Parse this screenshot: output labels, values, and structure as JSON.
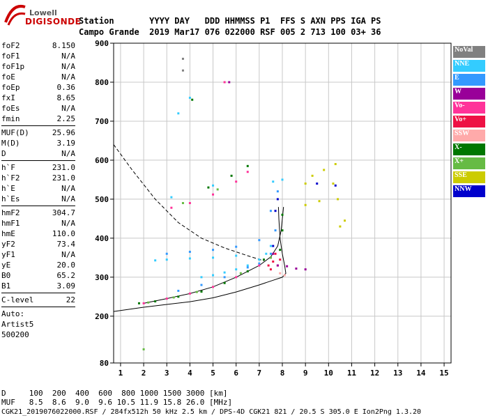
{
  "logo": {
    "line1": "Lowell",
    "line2": "DIGISONDE"
  },
  "header": {
    "row1": "Station       YYYY DAY   DDD HHMMSS P1  FFS S AXN PPS IGA PS",
    "row2": "Campo Grande  2019 Mar17 076 022000 RSF 005 2 713 100 03+ 36"
  },
  "params": [
    {
      "k": "foF2",
      "v": "8.150"
    },
    {
      "k": "foF1",
      "v": "N/A"
    },
    {
      "k": "foF1p",
      "v": "N/A"
    },
    {
      "k": "foE",
      "v": "N/A"
    },
    {
      "k": "foEp",
      "v": "0.36"
    },
    {
      "k": "fxI",
      "v": "8.65"
    },
    {
      "k": "foEs",
      "v": "N/A"
    },
    {
      "k": "fmin",
      "v": "2.25"
    },
    {
      "sep": true
    },
    {
      "k": "MUF(D)",
      "v": "25.96"
    },
    {
      "k": "M(D)",
      "v": "3.19"
    },
    {
      "k": "D",
      "v": "N/A"
    },
    {
      "sep": true
    },
    {
      "k": "h`F",
      "v": "231.0"
    },
    {
      "k": "h`F2",
      "v": "231.0"
    },
    {
      "k": "h`E",
      "v": "N/A"
    },
    {
      "k": "h`Es",
      "v": "N/A"
    },
    {
      "sep": true
    },
    {
      "k": "hmF2",
      "v": "304.7"
    },
    {
      "k": "hmF1",
      "v": "N/A"
    },
    {
      "k": "hmE",
      "v": "110.0"
    },
    {
      "k": "yF2",
      "v": "73.4"
    },
    {
      "k": "yF1",
      "v": "N/A"
    },
    {
      "k": "yE",
      "v": "20.0"
    },
    {
      "k": "B0",
      "v": "65.2"
    },
    {
      "k": "B1",
      "v": "3.09"
    },
    {
      "sep": true
    },
    {
      "k": "C-level",
      "v": "22"
    },
    {
      "sep": true
    },
    {
      "k": "Auto:",
      "v": ""
    },
    {
      "k": "Artist5",
      "v": ""
    },
    {
      "k": "500200",
      "v": ""
    }
  ],
  "legend": [
    {
      "label": "NoVal",
      "color": "#808080"
    },
    {
      "label": "NNE",
      "color": "#33ccff"
    },
    {
      "label": "E",
      "color": "#3399ff"
    },
    {
      "label": "W",
      "color": "#990099"
    },
    {
      "label": "Vo-",
      "color": "#ff3399"
    },
    {
      "label": "Vo+",
      "color": "#ee1144"
    },
    {
      "label": "SSW",
      "color": "#ffaaaa"
    },
    {
      "label": "X-",
      "color": "#007700"
    },
    {
      "label": "X+",
      "color": "#66bb44"
    },
    {
      "label": "SSE",
      "color": "#cccc00"
    },
    {
      "label": "NNW",
      "color": "#0000cc"
    }
  ],
  "bottom": {
    "row1": "D     100  200  400  600  800 1000 1500 3000 [km]",
    "row2": "MUF   8.5  8.6  9.0  9.6 10.5 11.9 15.8 26.0 [MHz]"
  },
  "footer": "CGK21_2019076022000.RSF / 284fx512h 50 kHz 2.5 km / DPS-4D CGK21 821 / 20.5 S 305.0 E Ion2Png 1.3.20",
  "chart_data": {
    "type": "scatter",
    "xlim": [
      0.7,
      15.3
    ],
    "ylim": [
      80,
      900
    ],
    "xticks": [
      1,
      2,
      3,
      4,
      5,
      6,
      7,
      8,
      9,
      10,
      11,
      12,
      13,
      14,
      15
    ],
    "yticks": [
      80,
      200,
      300,
      400,
      500,
      600,
      700,
      800,
      900
    ],
    "grid": true,
    "series": [
      {
        "color": "#33ccff",
        "points": [
          [
            4.5,
            300
          ],
          [
            5,
            305
          ],
          [
            5.5,
            312
          ],
          [
            6,
            320
          ],
          [
            6.5,
            330
          ],
          [
            7,
            345
          ],
          [
            7.3,
            360
          ],
          [
            7.5,
            380
          ],
          [
            6,
            355
          ],
          [
            5,
            350
          ],
          [
            4,
            348
          ],
          [
            3,
            345
          ],
          [
            2.5,
            343
          ],
          [
            7.6,
            545
          ],
          [
            8,
            550
          ],
          [
            3.2,
            505
          ],
          [
            5,
            535
          ],
          [
            3.5,
            720
          ],
          [
            4,
            760
          ]
        ]
      },
      {
        "color": "#3399ff",
        "points": [
          [
            3.5,
            265
          ],
          [
            4.5,
            280
          ],
          [
            5.5,
            300
          ],
          [
            6.5,
            325
          ],
          [
            7,
            335
          ],
          [
            7.5,
            360
          ],
          [
            7.7,
            420
          ],
          [
            3,
            360
          ],
          [
            4,
            365
          ],
          [
            5,
            370
          ],
          [
            6,
            378
          ],
          [
            7,
            395
          ],
          [
            7.5,
            470
          ],
          [
            7.8,
            520
          ]
        ]
      },
      {
        "color": "#ff3399",
        "points": [
          [
            2,
            233
          ],
          [
            3,
            245
          ],
          [
            4,
            258
          ],
          [
            5,
            275
          ],
          [
            6,
            300
          ],
          [
            7,
            330
          ],
          [
            7.5,
            350
          ],
          [
            3.2,
            478
          ],
          [
            4,
            490
          ],
          [
            5,
            512
          ],
          [
            6,
            545
          ],
          [
            6.5,
            570
          ],
          [
            5.5,
            800
          ]
        ]
      },
      {
        "color": "#ee1144",
        "points": [
          [
            7.4,
            330
          ],
          [
            7.6,
            340
          ],
          [
            7.7,
            360
          ],
          [
            7.8,
            330
          ],
          [
            7.5,
            320
          ],
          [
            7.9,
            345
          ]
        ]
      },
      {
        "color": "#990099",
        "points": [
          [
            7.8,
            330
          ],
          [
            8.2,
            328
          ],
          [
            8.6,
            322
          ],
          [
            9,
            320
          ],
          [
            7.6,
            360
          ],
          [
            5.7,
            800
          ]
        ]
      },
      {
        "color": "#007700",
        "points": [
          [
            1.8,
            233
          ],
          [
            2.5,
            238
          ],
          [
            3.5,
            250
          ],
          [
            4.5,
            263
          ],
          [
            5.5,
            285
          ],
          [
            6.5,
            315
          ],
          [
            7.2,
            345
          ],
          [
            7.9,
            370
          ],
          [
            8,
            420
          ],
          [
            8,
            460
          ],
          [
            4.8,
            530
          ],
          [
            5.8,
            560
          ],
          [
            6.5,
            585
          ],
          [
            4.1,
            755
          ]
        ]
      },
      {
        "color": "#66bb44",
        "points": [
          [
            2.2,
            235
          ],
          [
            3.3,
            248
          ],
          [
            4.3,
            262
          ],
          [
            6.2,
            310
          ],
          [
            7.5,
            350
          ],
          [
            3.7,
            490
          ],
          [
            5.2,
            525
          ],
          [
            2,
            115
          ]
        ]
      },
      {
        "color": "#cccc00",
        "points": [
          [
            9,
            540
          ],
          [
            9.3,
            560
          ],
          [
            9.8,
            575
          ],
          [
            10.3,
            590
          ],
          [
            10.2,
            540
          ],
          [
            10.4,
            500
          ],
          [
            9,
            485
          ],
          [
            9.6,
            495
          ],
          [
            10.5,
            430
          ],
          [
            10.7,
            445
          ]
        ]
      },
      {
        "color": "#0000cc",
        "points": [
          [
            7.7,
            470
          ],
          [
            7.8,
            500
          ],
          [
            7.6,
            380
          ],
          [
            9.5,
            540
          ],
          [
            10.3,
            535
          ]
        ]
      },
      {
        "color": "#ffaaaa",
        "points": [
          [
            7.9,
            310
          ],
          [
            8.1,
            305
          ]
        ]
      },
      {
        "color": "#808080",
        "points": [
          [
            3.7,
            860
          ],
          [
            3.7,
            830
          ]
        ]
      }
    ],
    "curves": [
      {
        "style": "dashed",
        "points": [
          [
            0.7,
            640
          ],
          [
            1.5,
            575
          ],
          [
            2.5,
            500
          ],
          [
            3.5,
            440
          ],
          [
            4.5,
            400
          ],
          [
            5.5,
            375
          ],
          [
            6.5,
            355
          ],
          [
            7.2,
            342
          ]
        ]
      },
      {
        "style": "solid",
        "points": [
          [
            0.7,
            212
          ],
          [
            2,
            223
          ],
          [
            3,
            230
          ],
          [
            4,
            237
          ],
          [
            5,
            247
          ],
          [
            6,
            262
          ],
          [
            7,
            280
          ],
          [
            7.6,
            292
          ],
          [
            8,
            300
          ],
          [
            8.15,
            310
          ],
          [
            8.1,
            330
          ],
          [
            8.0,
            360
          ],
          [
            7.9,
            400
          ],
          [
            7.85,
            450
          ],
          [
            7.83,
            480
          ]
        ]
      },
      {
        "style": "solid",
        "points": [
          [
            2,
            233
          ],
          [
            3,
            245
          ],
          [
            4,
            258
          ],
          [
            5,
            275
          ],
          [
            6,
            300
          ],
          [
            7,
            330
          ],
          [
            7.5,
            352
          ],
          [
            7.8,
            380
          ],
          [
            7.95,
            420
          ],
          [
            8.05,
            480
          ]
        ]
      }
    ]
  }
}
